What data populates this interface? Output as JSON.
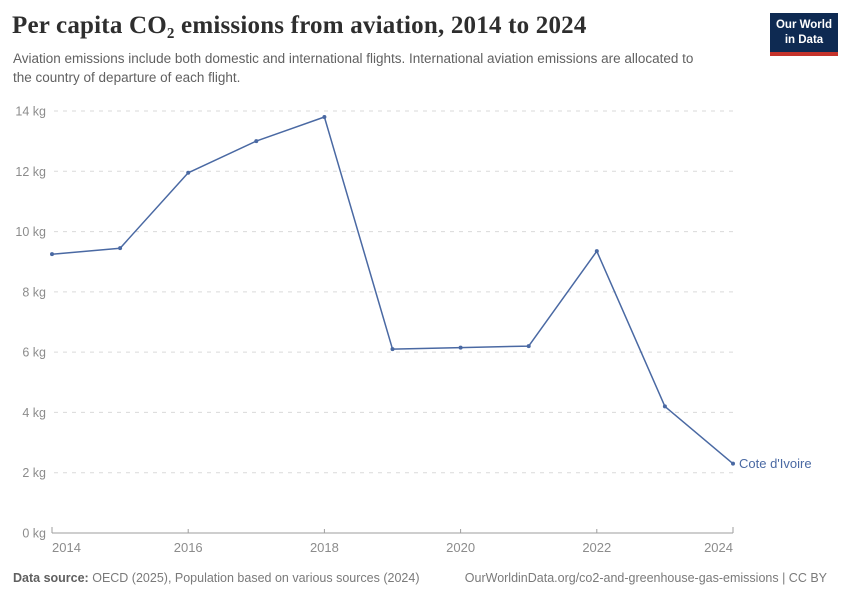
{
  "header": {
    "title": "Per capita CO₂ emissions from aviation, 2014 to 2024",
    "subtitle": "Aviation emissions include both domestic and international flights. International aviation emissions are allocated to the country of departure of each flight."
  },
  "logo": {
    "line1": "Our World",
    "line2": "in Data",
    "bg_color": "#0E2A52",
    "accent_color": "#C5332B"
  },
  "chart_data": {
    "type": "line",
    "title": "Per capita CO₂ emissions from aviation, 2014 to 2024",
    "xlabel": "",
    "ylabel": "",
    "x": [
      2014,
      2015,
      2016,
      2017,
      2018,
      2019,
      2020,
      2021,
      2022,
      2023,
      2024
    ],
    "series": [
      {
        "name": "Cote d'Ivoire",
        "color": "#4A69A3",
        "values": [
          9.25,
          9.45,
          11.95,
          13.0,
          13.8,
          6.1,
          6.15,
          6.2,
          9.35,
          4.2,
          2.3
        ]
      }
    ],
    "x_ticks": [
      2014,
      2016,
      2018,
      2020,
      2022,
      2024
    ],
    "y_ticks": [
      0,
      2,
      4,
      6,
      8,
      10,
      12,
      14
    ],
    "y_tick_suffix": " kg",
    "xlim": [
      2014,
      2024
    ],
    "ylim": [
      0,
      14
    ],
    "grid": "horizontal-dashed",
    "gridline_color": "#dadada",
    "axis_line_color": "#9e9e9e",
    "tick_label_color": "#8c8c8c",
    "legend_position": "end-of-line-label"
  },
  "footer": {
    "data_source_label": "Data source:",
    "data_source_text": "OECD (2025), Population based on various sources (2024)",
    "link_text": "OurWorldinData.org/co2-and-greenhouse-gas-emissions | CC BY"
  }
}
